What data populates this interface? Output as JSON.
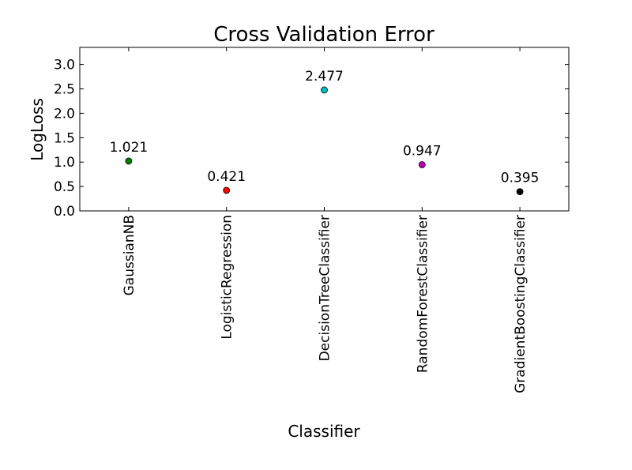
{
  "chart_data": {
    "type": "scatter",
    "title": "Cross Validation Error",
    "xlabel": "Classifier",
    "ylabel": "LogLoss",
    "ylim": [
      0.0,
      3.35
    ],
    "yticks": [
      0.0,
      0.5,
      1.0,
      1.5,
      2.0,
      2.5,
      3.0
    ],
    "ytick_labels": [
      "0.0",
      "0.5",
      "1.0",
      "1.5",
      "2.0",
      "2.5",
      "3.0"
    ],
    "grid": false,
    "categories": [
      "GaussianNB",
      "LogisticRegression",
      "DecisionTreeClassifier",
      "RandomForestClassifier",
      "GradientBoostingClassifier"
    ],
    "values": [
      1.021,
      0.421,
      2.477,
      0.947,
      0.395
    ],
    "value_labels": [
      "1.021",
      "0.421",
      "2.477",
      "0.947",
      "0.395"
    ],
    "colors": [
      "#007f00",
      "#ff0000",
      "#00bfbf",
      "#bf00bf",
      "#000000"
    ]
  }
}
